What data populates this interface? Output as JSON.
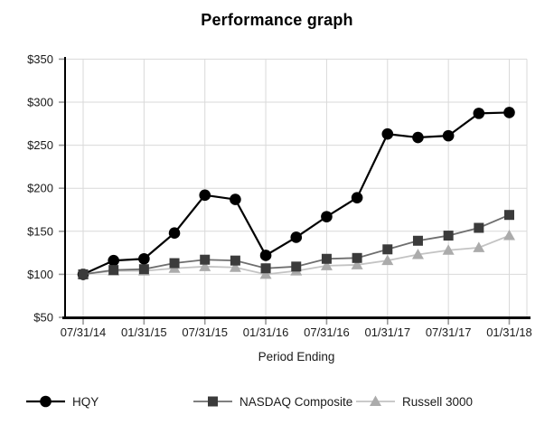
{
  "chart_data": {
    "type": "line",
    "title": "Performance graph",
    "xlabel": "Period Ending",
    "ylabel": "",
    "ylim": [
      50,
      350
    ],
    "grid": true,
    "legend_position": "bottom",
    "y_ticks": [
      {
        "value": 50,
        "label": "$50"
      },
      {
        "value": 100,
        "label": "$100"
      },
      {
        "value": 150,
        "label": "$150"
      },
      {
        "value": 200,
        "label": "$200"
      },
      {
        "value": 250,
        "label": "$250"
      },
      {
        "value": 300,
        "label": "$300"
      },
      {
        "value": 350,
        "label": "$350"
      }
    ],
    "x_points": [
      "07/31/14",
      "10/31/14",
      "01/31/15",
      "04/30/15",
      "07/31/15",
      "10/31/15",
      "01/31/16",
      "04/30/16",
      "07/31/16",
      "10/31/16",
      "01/31/17",
      "04/30/17",
      "07/31/17",
      "10/31/17",
      "01/31/18"
    ],
    "x_tick_labels": [
      "07/31/14",
      "01/31/15",
      "07/31/15",
      "01/31/16",
      "07/31/16",
      "01/31/17",
      "07/31/17",
      "01/31/18"
    ],
    "x_tick_indices": [
      0,
      2,
      4,
      6,
      8,
      10,
      12,
      14
    ],
    "series": [
      {
        "name": "HQY",
        "marker": "circle",
        "line_color": "#000000",
        "marker_color": "#000000",
        "values": [
          100,
          116,
          118,
          148,
          192,
          187,
          122,
          143,
          167,
          189,
          263,
          259,
          261,
          287,
          288
        ]
      },
      {
        "name": "NASDAQ Composite",
        "marker": "square",
        "line_color": "#6e6e6e",
        "marker_color": "#3b3b3b",
        "values": [
          100,
          105,
          106,
          113,
          117,
          116,
          107,
          109,
          118,
          119,
          129,
          139,
          145,
          154,
          169
        ]
      },
      {
        "name": "Russell 3000",
        "marker": "triangle",
        "line_color": "#c3c3c3",
        "marker_color": "#ababab",
        "values": [
          100,
          104,
          104,
          107,
          109,
          108,
          100,
          104,
          110,
          111,
          116,
          123,
          128,
          131,
          145
        ]
      }
    ],
    "style": {
      "grid_color": "#d9d9d9",
      "axis_color": "#000000",
      "tick_color": "#999999",
      "label_color": "#1a1a1a"
    }
  }
}
